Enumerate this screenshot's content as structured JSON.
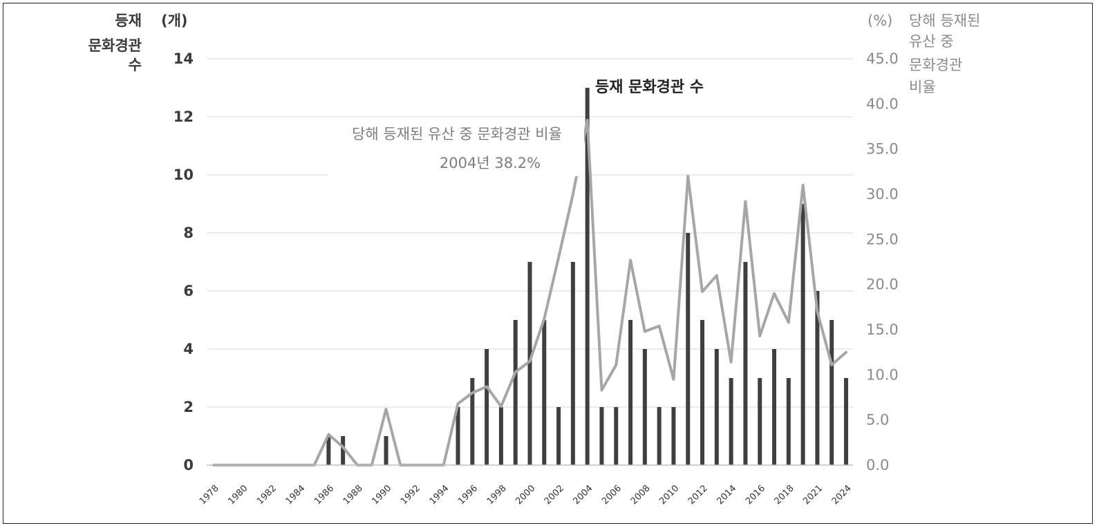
{
  "chart_data": {
    "type": "bar+line",
    "x": [
      "1978",
      "1979",
      "1980",
      "1981",
      "1982",
      "1983",
      "1984",
      "1985",
      "1986",
      "1987",
      "1988",
      "1989",
      "1990",
      "1991",
      "1992",
      "1993",
      "1994",
      "1995",
      "1996",
      "1997",
      "1998",
      "1999",
      "2000",
      "2001",
      "2002",
      "2003",
      "2004",
      "2005",
      "2006",
      "2007",
      "2008",
      "2009",
      "2010",
      "2011",
      "2012",
      "2013",
      "2014",
      "2015",
      "2016",
      "2017",
      "2018",
      "2019",
      "2021",
      "2023",
      "2024"
    ],
    "x_tick_labels": [
      "1978",
      "1980",
      "1982",
      "1984",
      "1986",
      "1988",
      "1990",
      "1992",
      "1994",
      "1996",
      "1998",
      "2000",
      "2002",
      "2004",
      "2006",
      "2008",
      "2010",
      "2012",
      "2014",
      "2016",
      "2018",
      "2021",
      "2024"
    ],
    "series": [
      {
        "name": "등재 문화경관 수",
        "type": "bar",
        "axis": "left",
        "color": "#3f3f3f",
        "values": [
          0,
          0,
          0,
          0,
          0,
          0,
          0,
          0,
          1,
          1,
          0,
          0,
          1,
          0,
          0,
          0,
          0,
          2,
          3,
          4,
          2,
          5,
          7,
          5,
          2,
          7,
          13,
          2,
          2,
          5,
          4,
          2,
          2,
          8,
          5,
          4,
          3,
          7,
          3,
          4,
          3,
          9,
          6,
          5,
          3
        ]
      },
      {
        "name": "당해 등재된 유산 중 문화경관 비율",
        "type": "line",
        "axis": "right",
        "color": "#a6a6a6",
        "values": [
          0,
          0,
          0,
          0,
          0,
          0,
          0,
          0,
          3.4,
          2.0,
          0,
          0,
          6.2,
          0,
          0,
          0,
          0,
          6.8,
          8.0,
          8.7,
          6.5,
          10.3,
          11.5,
          16.2,
          23.0,
          30.0,
          38.2,
          8.3,
          11.1,
          22.7,
          14.8,
          15.4,
          9.5,
          32.0,
          19.2,
          21.0,
          11.4,
          29.2,
          14.3,
          19.0,
          15.8,
          31.0,
          17.0,
          11.1,
          12.5
        ]
      }
    ],
    "left_axis": {
      "title_lines": [
        "등재",
        "문화경관",
        "수"
      ],
      "unit": "(개)",
      "ylim": [
        0,
        14
      ],
      "ticks": [
        "0",
        "2",
        "4",
        "6",
        "8",
        "10",
        "12",
        "14"
      ]
    },
    "right_axis": {
      "title_lines": [
        "당해 등재된",
        "유산 중",
        "문화경관",
        "비율"
      ],
      "unit": "(%)",
      "ylim": [
        0,
        45
      ],
      "ticks": [
        "0.0",
        "5.0",
        "10.0",
        "15.0",
        "20.0",
        "25.0",
        "30.0",
        "35.0",
        "40.0",
        "45.0"
      ]
    },
    "annotations": {
      "bar_label": "등재 문화경관 수",
      "line_label": "당해 등재된 유산 중 문화경관 비율",
      "line_value": "2004년  38.2%"
    },
    "grid": true,
    "legend": "none"
  }
}
